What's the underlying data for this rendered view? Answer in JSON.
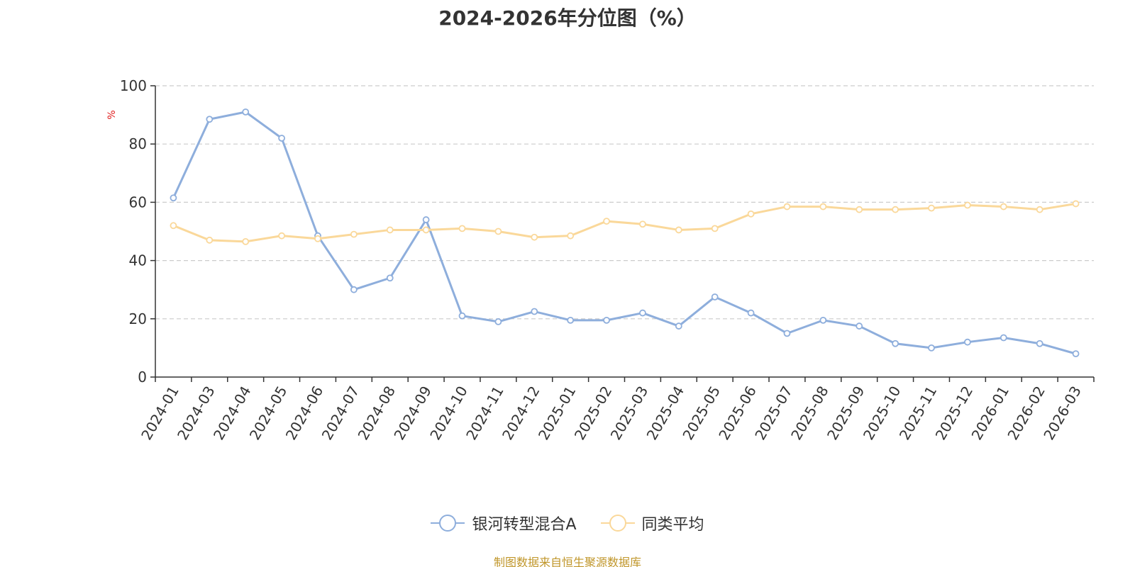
{
  "chart_data": {
    "type": "line",
    "title": "2024-2026年分位图（%）",
    "ylabel": "%",
    "ylim": [
      0,
      100
    ],
    "yticks": [
      "0",
      "20",
      "40",
      "60",
      "80",
      "100"
    ],
    "grid": "horizontal dashed",
    "legend_position": "bottom-center",
    "categories": [
      "2024-01",
      "2024-03",
      "2024-04",
      "2024-05",
      "2024-06",
      "2024-07",
      "2024-08",
      "2024-09",
      "2024-10",
      "2024-11",
      "2024-12",
      "2025-01",
      "2025-02",
      "2025-03",
      "2025-04",
      "2025-05",
      "2025-06",
      "2025-07",
      "2025-08",
      "2025-09",
      "2025-10",
      "2025-11",
      "2025-12",
      "2026-01",
      "2026-02",
      "2026-03"
    ],
    "series": [
      {
        "name": "银河转型混合A",
        "color": "#8eaedc",
        "values": [
          61.5,
          88.5,
          91.0,
          82.0,
          48.5,
          30.0,
          34.0,
          54.0,
          21.0,
          19.0,
          22.5,
          19.5,
          19.5,
          22.0,
          17.5,
          27.5,
          22.0,
          15.0,
          19.5,
          17.5,
          11.5,
          10.0,
          12.0,
          13.5,
          11.5,
          8.0
        ]
      },
      {
        "name": "同类平均",
        "color": "#fad89a",
        "values": [
          52.0,
          47.0,
          46.5,
          48.5,
          47.5,
          49.0,
          50.5,
          50.5,
          51.0,
          50.0,
          48.0,
          48.5,
          53.5,
          52.5,
          50.5,
          51.0,
          56.0,
          58.5,
          58.5,
          57.5,
          57.5,
          58.0,
          59.0,
          58.5,
          57.5,
          59.5
        ]
      }
    ]
  },
  "colors": {
    "ylabel": "#e02020",
    "source_note": "#c0962a",
    "grid": "#cccccc",
    "axis": "#333333"
  },
  "source_note": "制图数据来自恒生聚源数据库"
}
